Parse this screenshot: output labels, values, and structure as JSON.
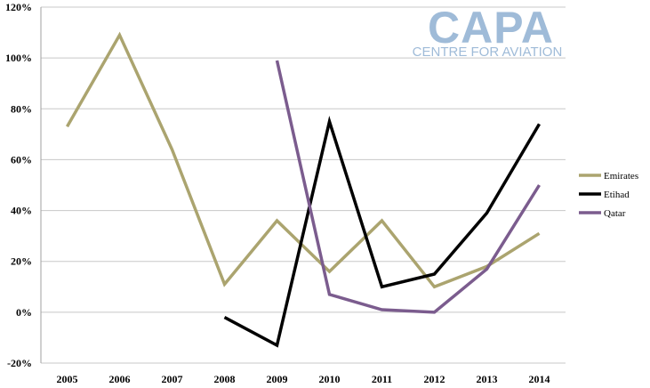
{
  "logo": {
    "text": "CAPA",
    "subtitle": "CENTRE FOR AVIATION",
    "color": "#9fbbd8"
  },
  "chart_data": {
    "type": "line",
    "title": "",
    "xlabel": "",
    "ylabel": "",
    "x": [
      "2005",
      "2006",
      "2007",
      "2008",
      "2009",
      "2010",
      "2011",
      "2012",
      "2013",
      "2014"
    ],
    "ylim": [
      -20,
      120
    ],
    "yticks": [
      -20,
      0,
      20,
      40,
      60,
      80,
      100,
      120
    ],
    "y_tick_labels": [
      "-20%",
      "0%",
      "20%",
      "40%",
      "60%",
      "80%",
      "100%",
      "120%"
    ],
    "grid": "horizontal",
    "legend_position": "right",
    "series": [
      {
        "name": "Emirates",
        "color": "#aba46f",
        "values": [
          73,
          109,
          64,
          11,
          36,
          16,
          36,
          10,
          18,
          31
        ]
      },
      {
        "name": "Etihad",
        "color": "#000000",
        "values": [
          null,
          null,
          null,
          -2,
          -13,
          75,
          10,
          15,
          39,
          74
        ]
      },
      {
        "name": "Qatar",
        "color": "#7b5c8e",
        "values": [
          null,
          null,
          null,
          null,
          99,
          7,
          1,
          0,
          17,
          50
        ]
      }
    ]
  }
}
